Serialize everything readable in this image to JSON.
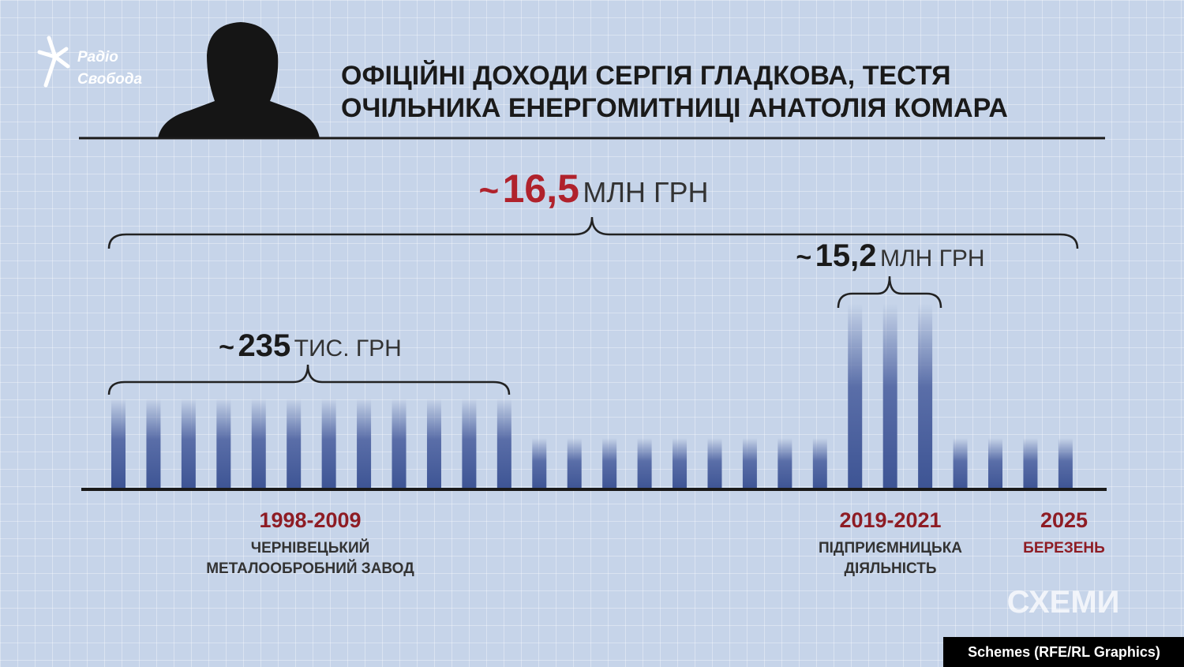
{
  "logo": {
    "line1": "Радіо",
    "line2": "Свобода"
  },
  "header": {
    "title_line1": "ОФІЦІЙНІ ДОХОДИ СЕРГІЯ ГЛАДКОВА, ТЕСТЯ",
    "title_line2": "ОЧІЛЬНИКА ЕНЕРГОМИТНИЦІ АНАТОЛІЯ КОМАРА"
  },
  "annotations": [
    {
      "prefix": "~",
      "amount": "16,5",
      "unit": "МЛН ГРН"
    },
    {
      "prefix": "~",
      "amount": "15,2",
      "unit": "МЛН ГРН"
    },
    {
      "prefix": "~",
      "amount": "235",
      "unit": "ТИС. ГРН"
    }
  ],
  "periods": [
    {
      "years": "1998-2009",
      "description": [
        "ЧЕРНІВЕЦЬКИЙ",
        "МЕТАЛООБРОБНИЙ ЗАВОД"
      ]
    },
    {
      "years": "2019-2021",
      "description": [
        "ПІДПРИЄМНИЦЬКА",
        "ДІЯЛЬНІСТЬ"
      ]
    },
    {
      "years": "2025",
      "description": [
        "БЕРЕЗЕНЬ"
      ]
    }
  ],
  "brand": "СХЕМИ",
  "credit": "Schemes (RFE/RL Graphics)"
}
